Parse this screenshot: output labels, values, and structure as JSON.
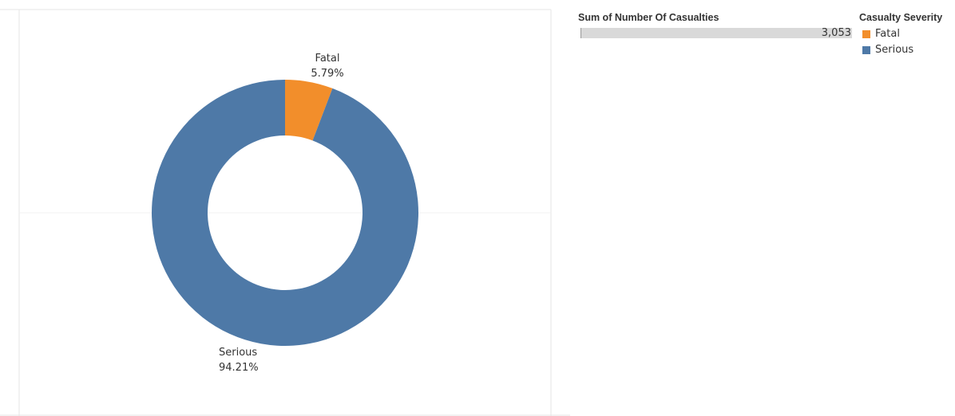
{
  "chart_data": {
    "type": "pie",
    "style": "donut",
    "slices": [
      {
        "label": "Fatal",
        "value": 5.79,
        "value_label": "5.79%",
        "color": "#f28e2b"
      },
      {
        "label": "Serious",
        "value": 94.21,
        "value_label": "94.21%",
        "color": "#4e79a7"
      }
    ],
    "legend": {
      "title": "Casualty Severity",
      "placement": "top-right",
      "items": [
        {
          "label": "Fatal",
          "color": "#f28e2b"
        },
        {
          "label": "Serious",
          "color": "#4e79a7"
        }
      ]
    },
    "size_legend": {
      "title": "Sum of Number Of Casualties",
      "value": "3,053"
    }
  }
}
